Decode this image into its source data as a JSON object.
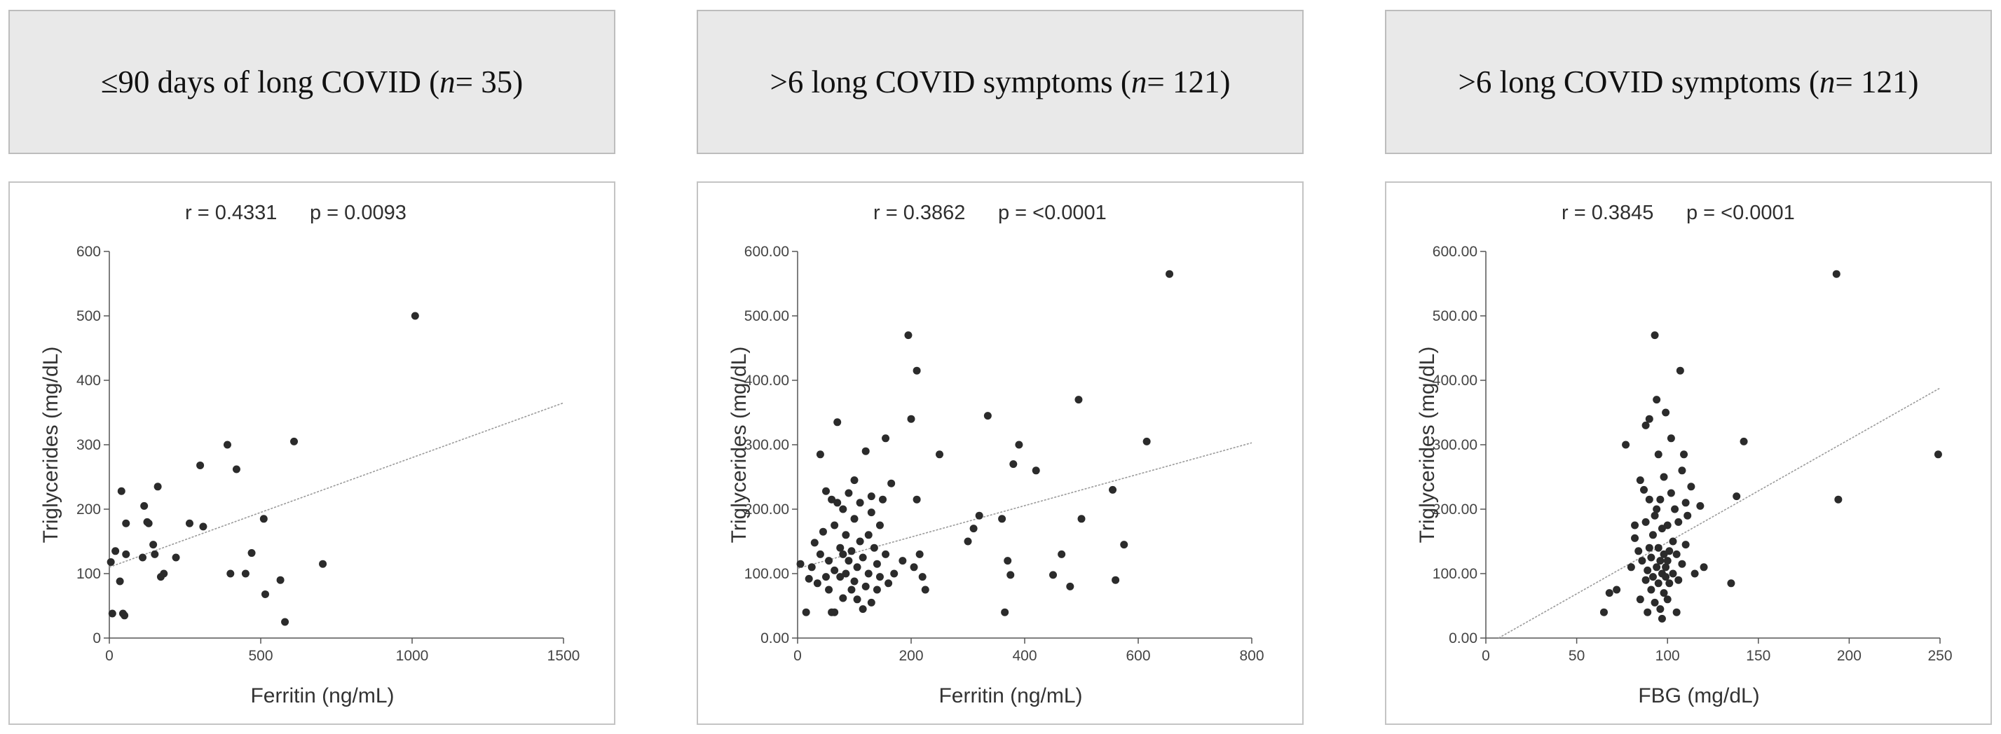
{
  "colors": {
    "header_bg": "#e9e9e9",
    "point": "#2b2b2b",
    "axis": "#555555",
    "trend": "#9a9a9a"
  },
  "headers": [
    {
      "prefix": "≤90 days of long COVID (",
      "n": "n",
      "suffix": " = 35)"
    },
    {
      "prefix": ">6 long COVID symptoms (",
      "n": "n",
      "suffix": " = 121)"
    },
    {
      "prefix": ">6 long COVID symptoms (",
      "n": "n",
      "suffix": " = 121)"
    }
  ],
  "chart_data": [
    {
      "type": "scatter",
      "stat_r": "r = 0.4331",
      "stat_p": "p = 0.0093",
      "xlabel": "Ferritin (ng/mL)",
      "ylabel": "Triglycerides (mg/dL)",
      "xlim": [
        0,
        1500
      ],
      "ylim": [
        0,
        600
      ],
      "xticks": [
        "0",
        "500",
        "1000",
        "1500"
      ],
      "yticks": [
        "0",
        "100",
        "200",
        "300",
        "400",
        "500",
        "600"
      ],
      "trendline": [
        [
          0,
          110
        ],
        [
          1500,
          365
        ]
      ],
      "points": [
        [
          10,
          38
        ],
        [
          5,
          118
        ],
        [
          20,
          135
        ],
        [
          35,
          88
        ],
        [
          40,
          228
        ],
        [
          45,
          38
        ],
        [
          55,
          178
        ],
        [
          50,
          35
        ],
        [
          55,
          130
        ],
        [
          110,
          125
        ],
        [
          115,
          205
        ],
        [
          125,
          180
        ],
        [
          130,
          178
        ],
        [
          145,
          145
        ],
        [
          150,
          130
        ],
        [
          160,
          235
        ],
        [
          170,
          95
        ],
        [
          180,
          100
        ],
        [
          220,
          125
        ],
        [
          265,
          178
        ],
        [
          300,
          268
        ],
        [
          310,
          173
        ],
        [
          390,
          300
        ],
        [
          400,
          100
        ],
        [
          420,
          262
        ],
        [
          450,
          100
        ],
        [
          470,
          132
        ],
        [
          510,
          185
        ],
        [
          515,
          68
        ],
        [
          565,
          90
        ],
        [
          580,
          25
        ],
        [
          610,
          305
        ],
        [
          705,
          115
        ],
        [
          1010,
          500
        ]
      ]
    },
    {
      "type": "scatter",
      "stat_r": "r = 0.3862",
      "stat_p": "p = <0.0001",
      "xlabel": "Ferritin (ng/mL)",
      "ylabel": "Triglycerides (mg/dL)",
      "xlim": [
        0,
        800
      ],
      "ylim": [
        0,
        600
      ],
      "xticks": [
        "0",
        "200",
        "400",
        "600",
        "800"
      ],
      "yticks": [
        "0.00",
        "100.00",
        "200.00",
        "300.00",
        "400.00",
        "500.00",
        "600.00"
      ],
      "trendline": [
        [
          0,
          108
        ],
        [
          800,
          303
        ]
      ],
      "points": [
        [
          5,
          115
        ],
        [
          15,
          40
        ],
        [
          20,
          92
        ],
        [
          25,
          110
        ],
        [
          30,
          148
        ],
        [
          35,
          85
        ],
        [
          40,
          285
        ],
        [
          40,
          130
        ],
        [
          45,
          165
        ],
        [
          50,
          228
        ],
        [
          50,
          95
        ],
        [
          55,
          75
        ],
        [
          55,
          120
        ],
        [
          60,
          40
        ],
        [
          60,
          215
        ],
        [
          65,
          40
        ],
        [
          65,
          105
        ],
        [
          65,
          175
        ],
        [
          70,
          335
        ],
        [
          70,
          210
        ],
        [
          75,
          95
        ],
        [
          75,
          140
        ],
        [
          80,
          62
        ],
        [
          80,
          130
        ],
        [
          80,
          200
        ],
        [
          85,
          100
        ],
        [
          85,
          160
        ],
        [
          90,
          120
        ],
        [
          90,
          225
        ],
        [
          95,
          75
        ],
        [
          95,
          135
        ],
        [
          100,
          88
        ],
        [
          100,
          185
        ],
        [
          100,
          245
        ],
        [
          105,
          60
        ],
        [
          105,
          110
        ],
        [
          110,
          150
        ],
        [
          110,
          210
        ],
        [
          115,
          45
        ],
        [
          115,
          125
        ],
        [
          120,
          290
        ],
        [
          120,
          80
        ],
        [
          125,
          100
        ],
        [
          125,
          160
        ],
        [
          130,
          55
        ],
        [
          130,
          195
        ],
        [
          130,
          220
        ],
        [
          135,
          140
        ],
        [
          140,
          115
        ],
        [
          140,
          75
        ],
        [
          145,
          175
        ],
        [
          145,
          95
        ],
        [
          150,
          215
        ],
        [
          155,
          310
        ],
        [
          155,
          130
        ],
        [
          160,
          85
        ],
        [
          165,
          240
        ],
        [
          170,
          100
        ],
        [
          185,
          120
        ],
        [
          195,
          470
        ],
        [
          200,
          340
        ],
        [
          205,
          110
        ],
        [
          210,
          415
        ],
        [
          210,
          215
        ],
        [
          215,
          130
        ],
        [
          220,
          95
        ],
        [
          225,
          75
        ],
        [
          250,
          285
        ],
        [
          300,
          150
        ],
        [
          310,
          170
        ],
        [
          320,
          190
        ],
        [
          335,
          345
        ],
        [
          360,
          185
        ],
        [
          365,
          40
        ],
        [
          370,
          120
        ],
        [
          375,
          98
        ],
        [
          380,
          270
        ],
        [
          390,
          300
        ],
        [
          420,
          260
        ],
        [
          450,
          98
        ],
        [
          465,
          130
        ],
        [
          480,
          80
        ],
        [
          495,
          370
        ],
        [
          500,
          185
        ],
        [
          555,
          230
        ],
        [
          560,
          90
        ],
        [
          575,
          145
        ],
        [
          615,
          305
        ],
        [
          655,
          565
        ]
      ]
    },
    {
      "type": "scatter",
      "stat_r": "r = 0.3845",
      "stat_p": "p = <0.0001",
      "xlabel": "FBG (mg/dL)",
      "ylabel": "Triglycerides (mg/dL)",
      "xlim": [
        0,
        250
      ],
      "ylim": [
        0,
        600
      ],
      "xticks": [
        "0",
        "50",
        "100",
        "150",
        "200",
        "250"
      ],
      "yticks": [
        "0.00",
        "100.00",
        "200.00",
        "300.00",
        "400.00",
        "500.00",
        "600.00"
      ],
      "trendline": [
        [
          7,
          0
        ],
        [
          250,
          388
        ]
      ],
      "points": [
        [
          65,
          40
        ],
        [
          68,
          70
        ],
        [
          72,
          75
        ],
        [
          77,
          300
        ],
        [
          80,
          110
        ],
        [
          82,
          155
        ],
        [
          82,
          175
        ],
        [
          84,
          135
        ],
        [
          85,
          245
        ],
        [
          85,
          60
        ],
        [
          86,
          120
        ],
        [
          87,
          230
        ],
        [
          88,
          90
        ],
        [
          88,
          180
        ],
        [
          88,
          330
        ],
        [
          89,
          40
        ],
        [
          89,
          105
        ],
        [
          90,
          140
        ],
        [
          90,
          340
        ],
        [
          90,
          215
        ],
        [
          91,
          75
        ],
        [
          91,
          125
        ],
        [
          92,
          95
        ],
        [
          92,
          160
        ],
        [
          93,
          470
        ],
        [
          93,
          55
        ],
        [
          93,
          190
        ],
        [
          94,
          110
        ],
        [
          94,
          370
        ],
        [
          94,
          200
        ],
        [
          95,
          85
        ],
        [
          95,
          140
        ],
        [
          95,
          285
        ],
        [
          96,
          120
        ],
        [
          96,
          45
        ],
        [
          96,
          215
        ],
        [
          97,
          100
        ],
        [
          97,
          170
        ],
        [
          97,
          30
        ],
        [
          98,
          130
        ],
        [
          98,
          70
        ],
        [
          98,
          250
        ],
        [
          99,
          350
        ],
        [
          99,
          110
        ],
        [
          99,
          95
        ],
        [
          100,
          175
        ],
        [
          100,
          60
        ],
        [
          100,
          120
        ],
        [
          101,
          135
        ],
        [
          101,
          85
        ],
        [
          102,
          310
        ],
        [
          102,
          225
        ],
        [
          103,
          150
        ],
        [
          103,
          100
        ],
        [
          104,
          200
        ],
        [
          105,
          40
        ],
        [
          105,
          130
        ],
        [
          106,
          180
        ],
        [
          106,
          90
        ],
        [
          107,
          415
        ],
        [
          108,
          260
        ],
        [
          108,
          115
        ],
        [
          109,
          285
        ],
        [
          110,
          210
        ],
        [
          110,
          145
        ],
        [
          111,
          190
        ],
        [
          113,
          235
        ],
        [
          115,
          100
        ],
        [
          118,
          205
        ],
        [
          120,
          110
        ],
        [
          135,
          85
        ],
        [
          138,
          220
        ],
        [
          142,
          305
        ],
        [
          193,
          565
        ],
        [
          194,
          215
        ],
        [
          249,
          285
        ]
      ]
    }
  ]
}
